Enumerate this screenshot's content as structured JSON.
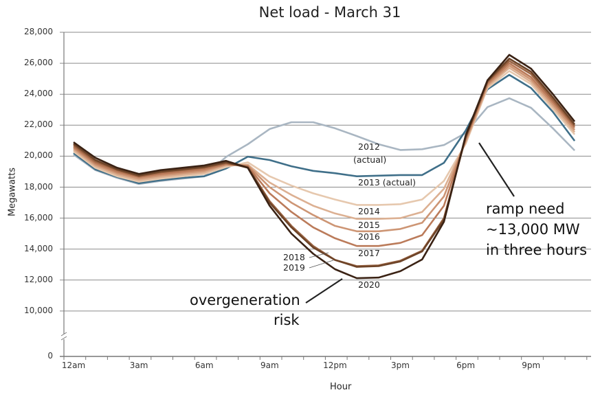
{
  "chart_data": {
    "type": "line",
    "title": "Net load - March 31",
    "xlabel": "Hour",
    "ylabel": "Megawatts",
    "x": [
      0,
      1,
      2,
      3,
      4,
      5,
      6,
      7,
      8,
      9,
      10,
      11,
      12,
      13,
      14,
      15,
      16,
      17,
      18,
      19,
      20,
      21,
      22,
      23
    ],
    "xtick_labels": [
      "12am",
      "3am",
      "6am",
      "9am",
      "12pm",
      "3pm",
      "6pm",
      "9pm"
    ],
    "ytick_labels": [
      "0",
      "10,000",
      "12,000",
      "14,000",
      "16,000",
      "18,000",
      "20,000",
      "22,000",
      "24,000",
      "26,000",
      "28,000"
    ],
    "ylim": [
      0,
      28000
    ],
    "y_axis_break": [
      0,
      10000
    ],
    "grid": true,
    "series": [
      {
        "name": "2012 (actual)",
        "color": "#a9b6c2",
        "values": [
          20100,
          19100,
          18600,
          18200,
          18400,
          18550,
          18700,
          19950,
          20770,
          21750,
          22190,
          22190,
          21800,
          21300,
          20770,
          20400,
          20450,
          20720,
          21500,
          23170,
          23740,
          23120,
          21800,
          20370
        ]
      },
      {
        "name": "2013 (actual)",
        "color": "#3f6f89",
        "values": [
          20200,
          19150,
          18650,
          18250,
          18450,
          18600,
          18700,
          19200,
          19970,
          19750,
          19350,
          19050,
          18900,
          18700,
          18740,
          18780,
          18780,
          19570,
          21660,
          24320,
          25250,
          24400,
          22860,
          20990
        ]
      },
      {
        "name": "2014",
        "color": "#e6c8ae",
        "values": [
          20300,
          19250,
          18700,
          18350,
          18550,
          18700,
          18850,
          19300,
          19600,
          18700,
          18100,
          17600,
          17200,
          16850,
          16850,
          16900,
          17200,
          18400,
          20800,
          24400,
          25500,
          24650,
          23050,
          21400
        ]
      },
      {
        "name": "2015",
        "color": "#dcb092",
        "values": [
          20400,
          19350,
          18800,
          18450,
          18650,
          18800,
          18950,
          19400,
          19450,
          18300,
          17500,
          16800,
          16300,
          15950,
          15950,
          16000,
          16400,
          17900,
          20900,
          24500,
          25700,
          24800,
          23200,
          21550
        ]
      },
      {
        "name": "2016",
        "color": "#cd9574",
        "values": [
          20500,
          19450,
          18900,
          18550,
          18750,
          18900,
          19050,
          19450,
          19400,
          18000,
          17000,
          16200,
          15500,
          15150,
          15150,
          15300,
          15700,
          17400,
          21000,
          24600,
          25850,
          24950,
          23350,
          21700
        ]
      },
      {
        "name": "2017",
        "color": "#bb7b5a",
        "values": [
          20600,
          19550,
          19000,
          18650,
          18850,
          19000,
          19150,
          19500,
          19350,
          17600,
          16400,
          15400,
          14700,
          14200,
          14200,
          14400,
          14900,
          16800,
          21100,
          24700,
          26000,
          25100,
          23500,
          21850
        ]
      },
      {
        "name": "2018",
        "color": "#9a6443",
        "values": [
          20700,
          19650,
          19100,
          18700,
          18950,
          19100,
          19250,
          19550,
          19300,
          17100,
          15500,
          14200,
          13300,
          12900,
          12950,
          13250,
          13900,
          16000,
          21200,
          24800,
          26150,
          25300,
          23650,
          21950
        ]
      },
      {
        "name": "2019",
        "color": "#6e4428",
        "values": [
          20800,
          19750,
          19150,
          18750,
          19000,
          19150,
          19300,
          19600,
          19250,
          17000,
          15400,
          14100,
          13300,
          12850,
          12900,
          13200,
          13850,
          15900,
          21250,
          24850,
          26300,
          25450,
          23800,
          22050
        ]
      },
      {
        "name": "2020",
        "color": "#3a2214",
        "values": [
          20900,
          19900,
          19250,
          18850,
          19100,
          19250,
          19400,
          19700,
          19250,
          16800,
          15000,
          13700,
          12700,
          12120,
          12160,
          12570,
          13330,
          15760,
          21350,
          24900,
          26540,
          25650,
          24010,
          22240
        ]
      }
    ],
    "annotations": {
      "l2012": "2012",
      "l2012b": "(actual)",
      "l2013": "2013 (actual)",
      "l2014": "2014",
      "l2015": "2015",
      "l2016": "2016",
      "l2017": "2017",
      "l2018": "2018",
      "l2019": "2019",
      "l2020": "2020",
      "overgen1": "overgeneration",
      "overgen2": "risk",
      "ramp1": "ramp need",
      "ramp2": "~13,000 MW",
      "ramp3": "in three hours"
    }
  }
}
